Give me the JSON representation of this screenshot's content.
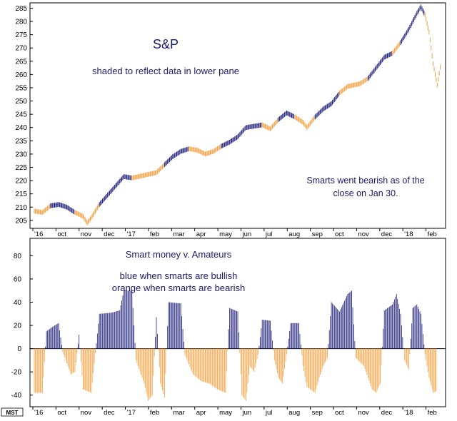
{
  "colors": {
    "bullish": "#1f1f7a",
    "bearish": "#f0a040",
    "frame": "#000000",
    "pane_background": "#ffffff",
    "window_background": "#cfe3f2",
    "annotation_text": "#1a1a6e"
  },
  "x_axis_labels": [
    "'16",
    "oct",
    "nov",
    "dec",
    "'17",
    "feb",
    "mar",
    "apr",
    "may",
    "jun",
    "jul",
    "aug",
    "sep",
    "oct",
    "nov",
    "dec",
    "'18",
    "feb"
  ],
  "badge": "MST",
  "chart_data": [
    {
      "type": "bar",
      "title": "S&P",
      "subtitle": "shaded to reflect data in lower pane",
      "annotation": [
        "Smarts went bearish as of the",
        "close on Jan 30."
      ],
      "y_axis_side": "left",
      "ylim": [
        202,
        287
      ],
      "y_ticks": [
        205,
        210,
        215,
        220,
        225,
        230,
        235,
        240,
        245,
        250,
        255,
        260,
        265,
        270,
        275,
        280,
        285
      ],
      "x_range": [
        0,
        100
      ],
      "points": [
        {
          "x": 0,
          "y": 208.5,
          "state": "bearish"
        },
        {
          "x": 2,
          "y": 208.0,
          "state": "bearish"
        },
        {
          "x": 4,
          "y": 210.5,
          "state": "bullish"
        },
        {
          "x": 6,
          "y": 211.0,
          "state": "bullish"
        },
        {
          "x": 8,
          "y": 210.0,
          "state": "bullish"
        },
        {
          "x": 10,
          "y": 208.0,
          "state": "bearish"
        },
        {
          "x": 12,
          "y": 206.5,
          "state": "bearish"
        },
        {
          "x": 13,
          "y": 204.0,
          "state": "bearish"
        },
        {
          "x": 14,
          "y": 206.0,
          "state": "bearish"
        },
        {
          "x": 16,
          "y": 211.0,
          "state": "bullish"
        },
        {
          "x": 18,
          "y": 214.5,
          "state": "bullish"
        },
        {
          "x": 20,
          "y": 218.0,
          "state": "bullish"
        },
        {
          "x": 22,
          "y": 221.5,
          "state": "bullish"
        },
        {
          "x": 24,
          "y": 221.0,
          "state": "bearish"
        },
        {
          "x": 27,
          "y": 222.0,
          "state": "bearish"
        },
        {
          "x": 30,
          "y": 223.0,
          "state": "bearish"
        },
        {
          "x": 32,
          "y": 226.0,
          "state": "bullish"
        },
        {
          "x": 34,
          "y": 229.0,
          "state": "bullish"
        },
        {
          "x": 36,
          "y": 231.0,
          "state": "bullish"
        },
        {
          "x": 38,
          "y": 232.0,
          "state": "bearish"
        },
        {
          "x": 40,
          "y": 231.5,
          "state": "bearish"
        },
        {
          "x": 42,
          "y": 230.0,
          "state": "bearish"
        },
        {
          "x": 44,
          "y": 231.0,
          "state": "bearish"
        },
        {
          "x": 46,
          "y": 233.0,
          "state": "bullish"
        },
        {
          "x": 48,
          "y": 234.5,
          "state": "bullish"
        },
        {
          "x": 50,
          "y": 236.5,
          "state": "bullish"
        },
        {
          "x": 52,
          "y": 240.0,
          "state": "bullish"
        },
        {
          "x": 54,
          "y": 240.5,
          "state": "bullish"
        },
        {
          "x": 56,
          "y": 241.0,
          "state": "bearish"
        },
        {
          "x": 58,
          "y": 239.5,
          "state": "bearish"
        },
        {
          "x": 60,
          "y": 243.0,
          "state": "bullish"
        },
        {
          "x": 62,
          "y": 245.5,
          "state": "bullish"
        },
        {
          "x": 64,
          "y": 244.0,
          "state": "bearish"
        },
        {
          "x": 66,
          "y": 242.0,
          "state": "bearish"
        },
        {
          "x": 67,
          "y": 240.0,
          "state": "bearish"
        },
        {
          "x": 69,
          "y": 244.0,
          "state": "bullish"
        },
        {
          "x": 71,
          "y": 247.0,
          "state": "bullish"
        },
        {
          "x": 73,
          "y": 249.0,
          "state": "bullish"
        },
        {
          "x": 75,
          "y": 253.0,
          "state": "bearish"
        },
        {
          "x": 77,
          "y": 255.5,
          "state": "bearish"
        },
        {
          "x": 80,
          "y": 256.5,
          "state": "bearish"
        },
        {
          "x": 82,
          "y": 258.5,
          "state": "bullish"
        },
        {
          "x": 84,
          "y": 262.5,
          "state": "bullish"
        },
        {
          "x": 86,
          "y": 266.5,
          "state": "bullish"
        },
        {
          "x": 88,
          "y": 268.0,
          "state": "bearish"
        },
        {
          "x": 90,
          "y": 272.0,
          "state": "bullish"
        },
        {
          "x": 92,
          "y": 277.0,
          "state": "bullish"
        },
        {
          "x": 93,
          "y": 280.0,
          "state": "bullish"
        },
        {
          "x": 94,
          "y": 283.0,
          "state": "bullish"
        },
        {
          "x": 95,
          "y": 285.5,
          "state": "bullish"
        },
        {
          "x": 96,
          "y": 282.5,
          "state": "bearish"
        },
        {
          "x": 97,
          "y": 276.0,
          "state": "bearish"
        },
        {
          "x": 98,
          "y": 264.0,
          "state": "bearish"
        },
        {
          "x": 99,
          "y": 256.0,
          "state": "bearish"
        },
        {
          "x": 100,
          "y": 265.0,
          "state": "bearish"
        }
      ]
    },
    {
      "type": "bar",
      "title": "Smart money v. Amateurs",
      "legend_lines": [
        "blue when smarts are bullish",
        "orange when smarts are bearish"
      ],
      "y_axis_side": "left",
      "ylim": [
        -50,
        95
      ],
      "y_ticks": [
        -40,
        -20,
        0,
        20,
        40,
        60,
        80
      ],
      "x_range": [
        0,
        100
      ],
      "points": [
        {
          "x": 0,
          "y": -38
        },
        {
          "x": 2,
          "y": -38
        },
        {
          "x": 3,
          "y": 15
        },
        {
          "x": 5,
          "y": 20
        },
        {
          "x": 6,
          "y": 22
        },
        {
          "x": 7,
          "y": -3
        },
        {
          "x": 9,
          "y": -22
        },
        {
          "x": 10,
          "y": -20
        },
        {
          "x": 11,
          "y": 12
        },
        {
          "x": 12,
          "y": -35
        },
        {
          "x": 14,
          "y": -38
        },
        {
          "x": 16,
          "y": 30
        },
        {
          "x": 19,
          "y": 31
        },
        {
          "x": 21,
          "y": 33
        },
        {
          "x": 22,
          "y": 50
        },
        {
          "x": 24,
          "y": 50
        },
        {
          "x": 25,
          "y": -10
        },
        {
          "x": 27,
          "y": -30
        },
        {
          "x": 28,
          "y": -45
        },
        {
          "x": 29,
          "y": -40
        },
        {
          "x": 30,
          "y": 27
        },
        {
          "x": 31,
          "y": -30
        },
        {
          "x": 32,
          "y": -42
        },
        {
          "x": 33,
          "y": 40
        },
        {
          "x": 36,
          "y": 39
        },
        {
          "x": 37,
          "y": -5
        },
        {
          "x": 39,
          "y": -22
        },
        {
          "x": 41,
          "y": -28
        },
        {
          "x": 43,
          "y": -30
        },
        {
          "x": 45,
          "y": -35
        },
        {
          "x": 47,
          "y": -38
        },
        {
          "x": 48,
          "y": 35
        },
        {
          "x": 50,
          "y": 32
        },
        {
          "x": 51,
          "y": -40
        },
        {
          "x": 52,
          "y": -45
        },
        {
          "x": 53,
          "y": -15
        },
        {
          "x": 54,
          "y": -20
        },
        {
          "x": 55,
          "y": -5
        },
        {
          "x": 56,
          "y": 25
        },
        {
          "x": 58,
          "y": 24
        },
        {
          "x": 59,
          "y": -10
        },
        {
          "x": 60,
          "y": -25
        },
        {
          "x": 61,
          "y": -30
        },
        {
          "x": 62,
          "y": -5
        },
        {
          "x": 63,
          "y": 22
        },
        {
          "x": 65,
          "y": 22
        },
        {
          "x": 66,
          "y": -15
        },
        {
          "x": 67,
          "y": -33
        },
        {
          "x": 69,
          "y": -38
        },
        {
          "x": 70,
          "y": -25
        },
        {
          "x": 71,
          "y": -15
        },
        {
          "x": 72,
          "y": -8
        },
        {
          "x": 73,
          "y": 40
        },
        {
          "x": 75,
          "y": 32
        },
        {
          "x": 77,
          "y": 47
        },
        {
          "x": 78,
          "y": 50
        },
        {
          "x": 79,
          "y": -8
        },
        {
          "x": 81,
          "y": -15
        },
        {
          "x": 83,
          "y": -35
        },
        {
          "x": 84,
          "y": -38
        },
        {
          "x": 85,
          "y": -30
        },
        {
          "x": 86,
          "y": 33
        },
        {
          "x": 88,
          "y": 38
        },
        {
          "x": 89,
          "y": 47
        },
        {
          "x": 90,
          "y": 30
        },
        {
          "x": 91,
          "y": -10
        },
        {
          "x": 92,
          "y": -18
        },
        {
          "x": 93,
          "y": 35
        },
        {
          "x": 94,
          "y": 38
        },
        {
          "x": 95,
          "y": 30
        },
        {
          "x": 96,
          "y": -5
        },
        {
          "x": 97,
          "y": -25
        },
        {
          "x": 98,
          "y": -38
        },
        {
          "x": 99,
          "y": -36
        }
      ]
    }
  ]
}
